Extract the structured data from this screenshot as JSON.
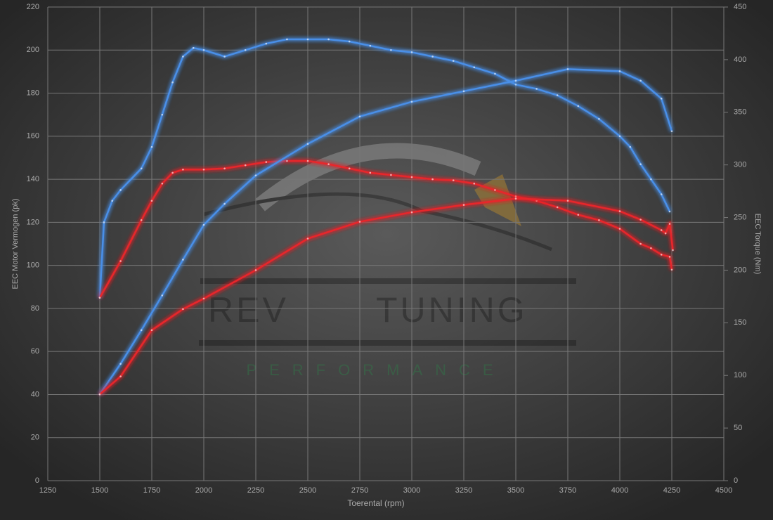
{
  "chart_data": {
    "type": "line",
    "xlabel": "Toerental (rpm)",
    "ylabel": "EEC Motor Vermogen (pk)",
    "y2label": "EEC Torque (Nm)",
    "xlim": [
      1250,
      4500
    ],
    "xticks": [
      1250,
      1500,
      1750,
      2000,
      2250,
      2500,
      2750,
      3000,
      3250,
      3500,
      3750,
      4000,
      4250,
      4500
    ],
    "ylim": [
      0,
      220
    ],
    "yticks": [
      0,
      20,
      40,
      60,
      80,
      100,
      120,
      140,
      160,
      180,
      200,
      220
    ],
    "y2lim": [
      0,
      450
    ],
    "y2ticks": [
      0,
      50,
      100,
      150,
      200,
      250,
      300,
      350,
      400,
      450
    ],
    "grid": true,
    "watermark": [
      "REV",
      "TUNING",
      "PERFORMANCE"
    ],
    "series": [
      {
        "color": "#4a8fe8",
        "axis": "y",
        "x": [
          1500,
          1520,
          1560,
          1600,
          1700,
          1750,
          1800,
          1850,
          1900,
          1950,
          2000,
          2100,
          2200,
          2300,
          2400,
          2500,
          2600,
          2700,
          2800,
          2900,
          3000,
          3100,
          3200,
          3300,
          3400,
          3500,
          3600,
          3700,
          3800,
          3900,
          4000,
          4050,
          4100,
          4150,
          4200,
          4240
        ],
        "values": [
          85,
          120,
          130,
          135,
          145,
          155,
          170,
          185,
          197,
          201,
          200,
          197,
          200,
          203,
          205,
          205,
          205,
          204,
          202,
          200,
          199,
          197,
          195,
          192,
          189,
          184,
          182,
          179,
          174,
          168,
          160,
          155,
          147,
          140,
          133,
          125
        ]
      },
      {
        "color": "#e8262a",
        "axis": "y",
        "x": [
          1500,
          1600,
          1700,
          1750,
          1800,
          1850,
          1900,
          2000,
          2100,
          2200,
          2300,
          2400,
          2500,
          2600,
          2700,
          2800,
          2900,
          3000,
          3100,
          3200,
          3300,
          3400,
          3500,
          3600,
          3700,
          3800,
          3900,
          4000,
          4100,
          4150,
          4200,
          4240,
          4250
        ],
        "values": [
          85,
          102,
          121,
          130,
          138,
          143,
          144.5,
          144.5,
          145,
          146.5,
          148,
          148.5,
          148.5,
          147,
          145,
          143,
          142,
          141,
          140,
          139.5,
          138,
          135,
          132,
          130,
          127,
          123.5,
          121,
          117,
          110,
          108,
          105,
          104,
          98
        ]
      },
      {
        "color": "#4a8fe8",
        "axis": "y2",
        "x": [
          1500,
          1600,
          1700,
          1800,
          1900,
          2000,
          2100,
          2250,
          2500,
          2750,
          3000,
          3250,
          3500,
          3750,
          4000,
          4100,
          4200,
          4250
        ],
        "values": [
          82,
          111,
          143,
          176,
          210,
          243,
          263,
          290,
          320,
          346,
          360,
          370,
          380,
          391,
          389,
          380,
          363,
          332
        ]
      },
      {
        "color": "#e8262a",
        "axis": "y2",
        "x": [
          1500,
          1600,
          1750,
          1900,
          2000,
          2250,
          2500,
          2750,
          3000,
          3250,
          3500,
          3750,
          4000,
          4100,
          4200,
          4220,
          4240,
          4255
        ],
        "values": [
          82,
          99,
          143,
          163,
          173,
          200,
          230,
          246,
          255,
          262,
          268,
          266,
          256,
          248,
          238,
          235,
          244,
          219
        ]
      }
    ]
  }
}
